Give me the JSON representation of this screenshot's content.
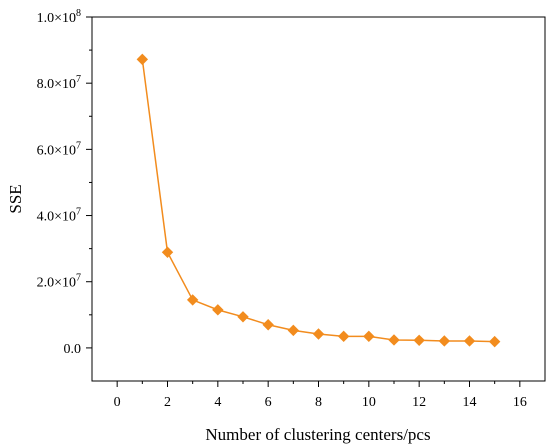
{
  "chart_data": {
    "type": "line",
    "xlabel": "Number of clustering centers/pcs",
    "ylabel": "SSE",
    "xlim": [
      -1,
      17
    ],
    "ylim": [
      -10000000,
      100000000
    ],
    "xticks": [
      0,
      2,
      4,
      6,
      8,
      10,
      12,
      14,
      16
    ],
    "xtick_labels": [
      "0",
      "2",
      "4",
      "6",
      "8",
      "10",
      "12",
      "14",
      "16"
    ],
    "yticks": [
      0,
      20000000,
      40000000,
      60000000,
      80000000,
      100000000
    ],
    "ytick_labels": [
      {
        "mantissa": "0.0",
        "exp": ""
      },
      {
        "mantissa": "2.0×10",
        "exp": "7"
      },
      {
        "mantissa": "4.0×10",
        "exp": "7"
      },
      {
        "mantissa": "6.0×10",
        "exp": "7"
      },
      {
        "mantissa": "8.0×10",
        "exp": "7"
      },
      {
        "mantissa": "1.0×10",
        "exp": "8"
      }
    ],
    "x": [
      1,
      2,
      3,
      4,
      5,
      6,
      7,
      8,
      9,
      10,
      11,
      12,
      13,
      14,
      15
    ],
    "series": [
      {
        "values": [
          87200000,
          28900000,
          14500000,
          11500000,
          9400000,
          7000000,
          5300000,
          4200000,
          3500000,
          3500000,
          2400000,
          2300000,
          2100000,
          2100000,
          1900000
        ],
        "color": "#F28C1E",
        "marker": "diamond"
      }
    ],
    "grid": false,
    "minor_ticks": true
  }
}
